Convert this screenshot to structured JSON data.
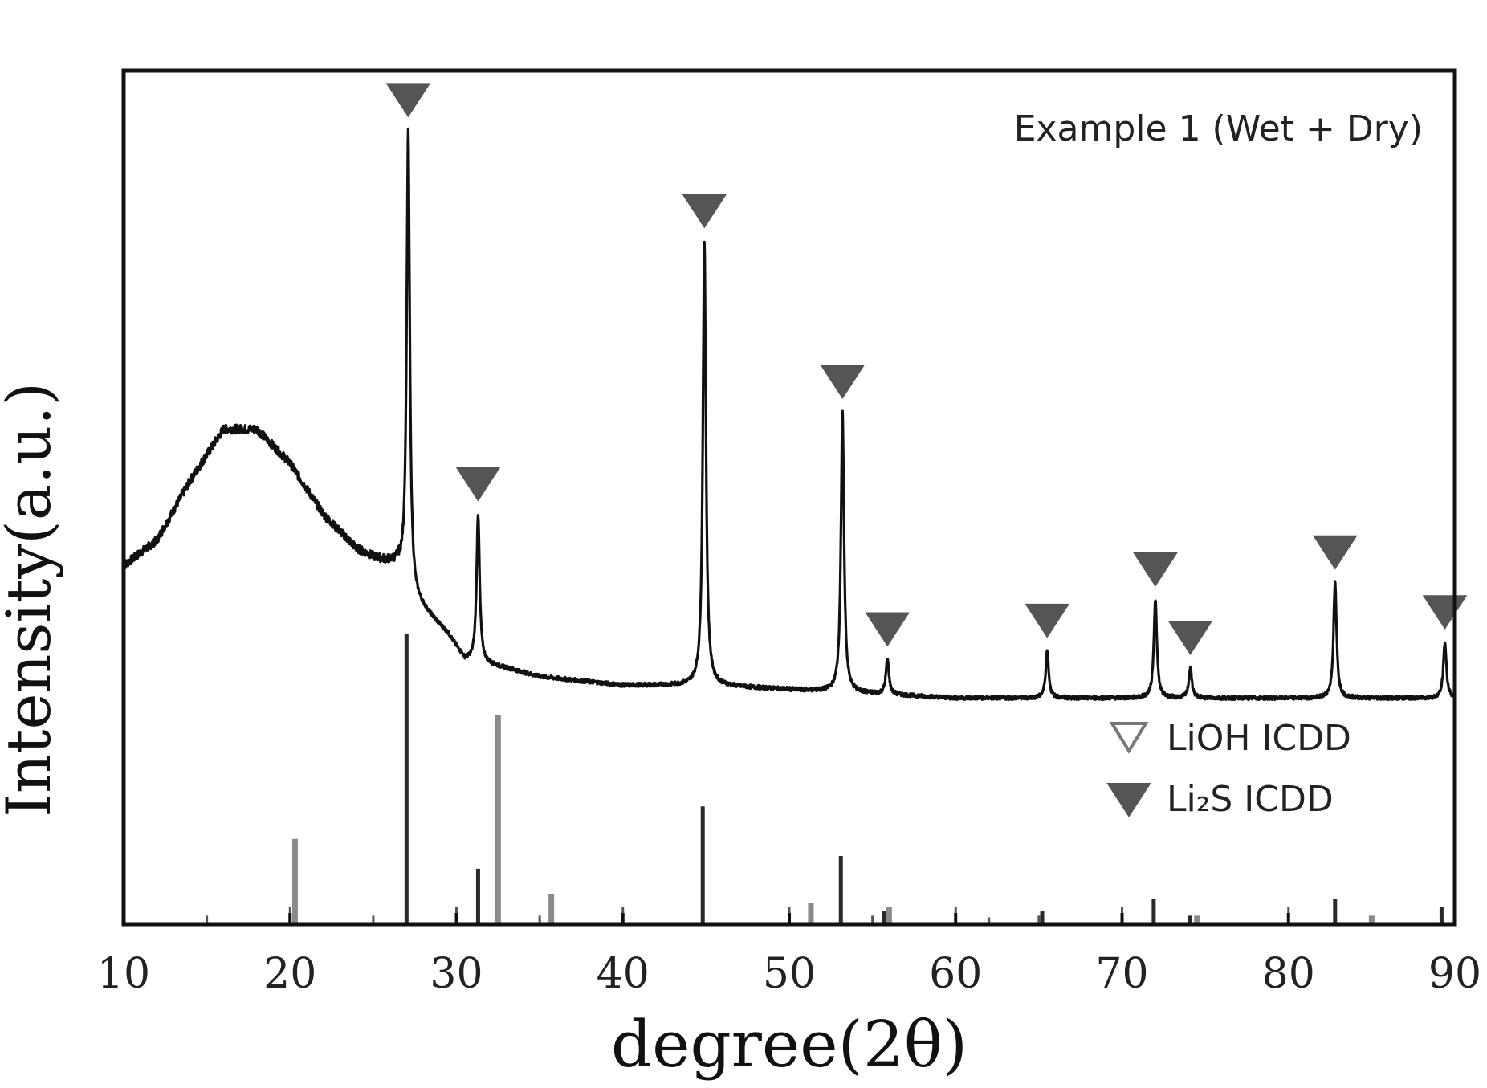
{
  "chart_data": {
    "type": "line",
    "xlabel": "degree(2θ)",
    "ylabel": "Intensity(a.u.)",
    "xlim": [
      10,
      90
    ],
    "x_ticks": [
      10,
      20,
      30,
      40,
      50,
      60,
      70,
      80,
      90
    ],
    "y_ticks_shown": false,
    "sample_label": "Example 1 (Wet + Dry)",
    "legend": {
      "position": "bottom-right",
      "entries": [
        {
          "marker": "open-triangle-down",
          "label": "LiOH ICDD"
        },
        {
          "marker": "filled-triangle-down",
          "label": "Li₂S ICDD"
        }
      ]
    },
    "pattern": {
      "baseline": [
        [
          10,
          42
        ],
        [
          12,
          45
        ],
        [
          14,
          52
        ],
        [
          16,
          58
        ],
        [
          18,
          58
        ],
        [
          20,
          54
        ],
        [
          22,
          48
        ],
        [
          24,
          44
        ],
        [
          25,
          43
        ],
        [
          26.5,
          42
        ],
        [
          27.5,
          38
        ],
        [
          28.5,
          36
        ],
        [
          29.5,
          34
        ],
        [
          30.5,
          31
        ],
        [
          33,
          30
        ],
        [
          35,
          29
        ],
        [
          40,
          28
        ],
        [
          45,
          28
        ],
        [
          50,
          27.5
        ],
        [
          55,
          27
        ],
        [
          60,
          26.5
        ],
        [
          70,
          26.5
        ],
        [
          80,
          26.5
        ],
        [
          90,
          26.5
        ]
      ],
      "peaks": [
        {
          "x": 27.1,
          "y": 93
        },
        {
          "x": 31.3,
          "y": 48
        },
        {
          "x": 44.9,
          "y": 80
        },
        {
          "x": 53.2,
          "y": 60
        },
        {
          "x": 55.9,
          "y": 31
        },
        {
          "x": 65.5,
          "y": 32
        },
        {
          "x": 72.0,
          "y": 38
        },
        {
          "x": 74.1,
          "y": 30
        },
        {
          "x": 82.8,
          "y": 40
        },
        {
          "x": 89.4,
          "y": 33
        }
      ]
    },
    "li2s_marker_positions": [
      27.1,
      31.3,
      44.9,
      53.2,
      55.9,
      65.5,
      72.0,
      74.1,
      82.8,
      89.4
    ],
    "reference_sticks": {
      "Li2S": [
        [
          27.0,
          34
        ],
        [
          31.3,
          6.5
        ],
        [
          44.8,
          13.8
        ],
        [
          53.1,
          8
        ],
        [
          55.7,
          1.5
        ],
        [
          65.2,
          1.5
        ],
        [
          71.9,
          3
        ],
        [
          74.1,
          1
        ],
        [
          82.8,
          3
        ],
        [
          89.2,
          2
        ]
      ],
      "LiOH": [
        [
          20.3,
          10
        ],
        [
          32.5,
          24.5
        ],
        [
          35.7,
          3.5
        ],
        [
          51.3,
          2.5
        ],
        [
          56.0,
          2
        ],
        [
          74.5,
          1
        ],
        [
          85.0,
          1
        ]
      ],
      "minor": [
        [
          15,
          1
        ],
        [
          20,
          2
        ],
        [
          25,
          1
        ],
        [
          30,
          2
        ],
        [
          35,
          1
        ],
        [
          40,
          2
        ],
        [
          50,
          2
        ],
        [
          55,
          1
        ],
        [
          60,
          2
        ],
        [
          62,
          0.8
        ],
        [
          65,
          1
        ],
        [
          70,
          2
        ],
        [
          80,
          2
        ]
      ]
    }
  }
}
